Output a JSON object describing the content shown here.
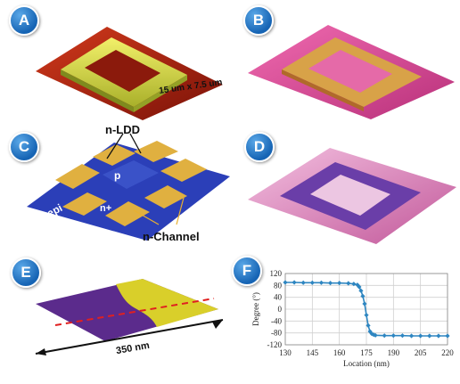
{
  "panels": {
    "a": {
      "badge": "A",
      "scale_label": "15 um x 7.5 um"
    },
    "b": {
      "badge": "B"
    },
    "c": {
      "badge": "C",
      "label_n_ldd": "n-LDD",
      "label_p": "p",
      "label_n_plus": "n+",
      "label_p_epi": "p-epi",
      "label_n_channel": "n-Channel"
    },
    "d": {
      "badge": "D"
    },
    "e": {
      "badge": "E",
      "scale_label": "350 nm"
    },
    "f": {
      "badge": "F"
    }
  },
  "colors": {
    "badge": "#1a6fc0",
    "line": "#2e86c1",
    "substrate_red": "#a3200f",
    "epi_blue": "#2b3fb8",
    "pad_yellow": "#e6e23a",
    "magenta": "#d9509b",
    "purple": "#6a3ea8"
  },
  "chart_data": {
    "type": "line",
    "xlabel": "Location (nm)",
    "ylabel": "Degree (°)",
    "xlim": [
      130,
      220
    ],
    "ylim": [
      -120,
      120
    ],
    "xticks": [
      "130",
      "145",
      "160",
      "175",
      "190",
      "205",
      "220"
    ],
    "yticks": [
      "120",
      "80",
      "40",
      "0",
      "-40",
      "-80",
      "-120"
    ],
    "grid": true,
    "series": [
      {
        "x": [
          130,
          135,
          140,
          145,
          150,
          155,
          160,
          165,
          168,
          170,
          171,
          172,
          173,
          174,
          175,
          176,
          177,
          178,
          179,
          180,
          185,
          190,
          195,
          200,
          205,
          210,
          215,
          220
        ],
        "values": [
          90,
          90,
          89,
          89,
          89,
          88,
          88,
          87,
          85,
          82,
          75,
          62,
          44,
          18,
          -20,
          -55,
          -75,
          -83,
          -86,
          -88,
          -89,
          -89,
          -89,
          -90,
          -90,
          -90,
          -90,
          -90
        ]
      }
    ]
  }
}
